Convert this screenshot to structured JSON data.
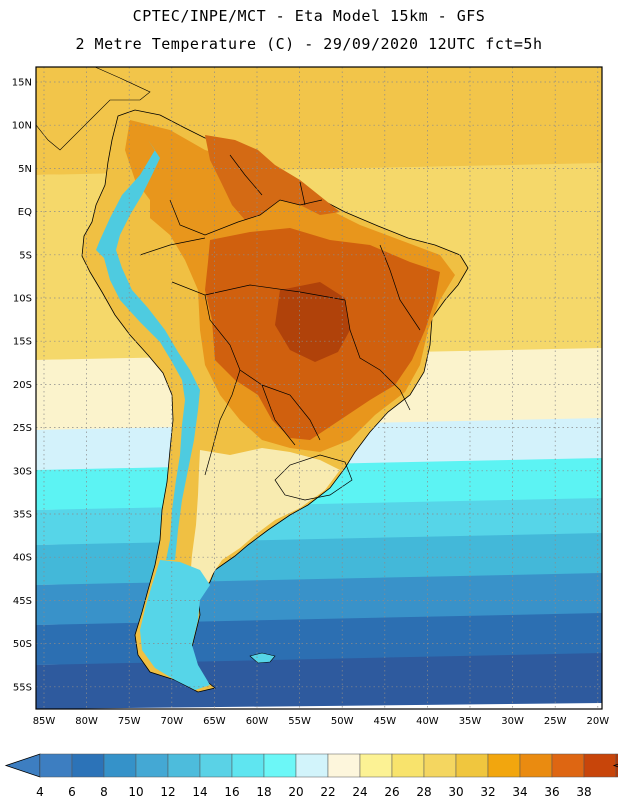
{
  "header": {
    "line1": "CPTEC/INPE/MCT -  Eta Model 15km - GFS",
    "line2": "2 Metre Temperature (C) - 29/09/2020 12UTC fct=5h"
  },
  "map": {
    "lat_labels": [
      "15N",
      "10N",
      "5N",
      "EQ",
      "5S",
      "10S",
      "15S",
      "20S",
      "25S",
      "30S",
      "35S",
      "40S",
      "45S",
      "50S",
      "55S"
    ],
    "lon_labels": [
      "85W",
      "80W",
      "75W",
      "70W",
      "65W",
      "60W",
      "55W",
      "50W",
      "45W",
      "40W",
      "35W",
      "30W",
      "25W",
      "20W"
    ],
    "ocean_band_colors": [
      "#f2c54a",
      "#f5d86a",
      "#fbf3cc",
      "#d3f2fb",
      "#5cf3f3",
      "#56d5e8",
      "#43b8d9",
      "#3992c9",
      "#2c6fb2",
      "#2e5a9e"
    ],
    "land_colors": {
      "hot": "#bf4d08",
      "warm": "#de7a12",
      "mild": "#f2c54a",
      "cool": "#f8ebb0",
      "cold": "#4ecbe0"
    }
  },
  "colorbar": {
    "labels": [
      "4",
      "6",
      "8",
      "10",
      "12",
      "14",
      "16",
      "18",
      "20",
      "22",
      "24",
      "26",
      "28",
      "30",
      "32",
      "34",
      "36",
      "38"
    ],
    "colors": [
      "#3d7ec1",
      "#2c73b8",
      "#3592c9",
      "#44a8d4",
      "#4dbcdc",
      "#5ad2e6",
      "#5fe5f0",
      "#6cf7f7",
      "#d2f4fb",
      "#fdf6dc",
      "#fcf294",
      "#f8e36c",
      "#f4d660",
      "#f0c63e",
      "#f2a60e",
      "#ea8b10",
      "#de6612",
      "#c8450a",
      "#b23605"
    ],
    "low_arrow": "#3d7ec1",
    "high_arrow": "#b23605"
  }
}
